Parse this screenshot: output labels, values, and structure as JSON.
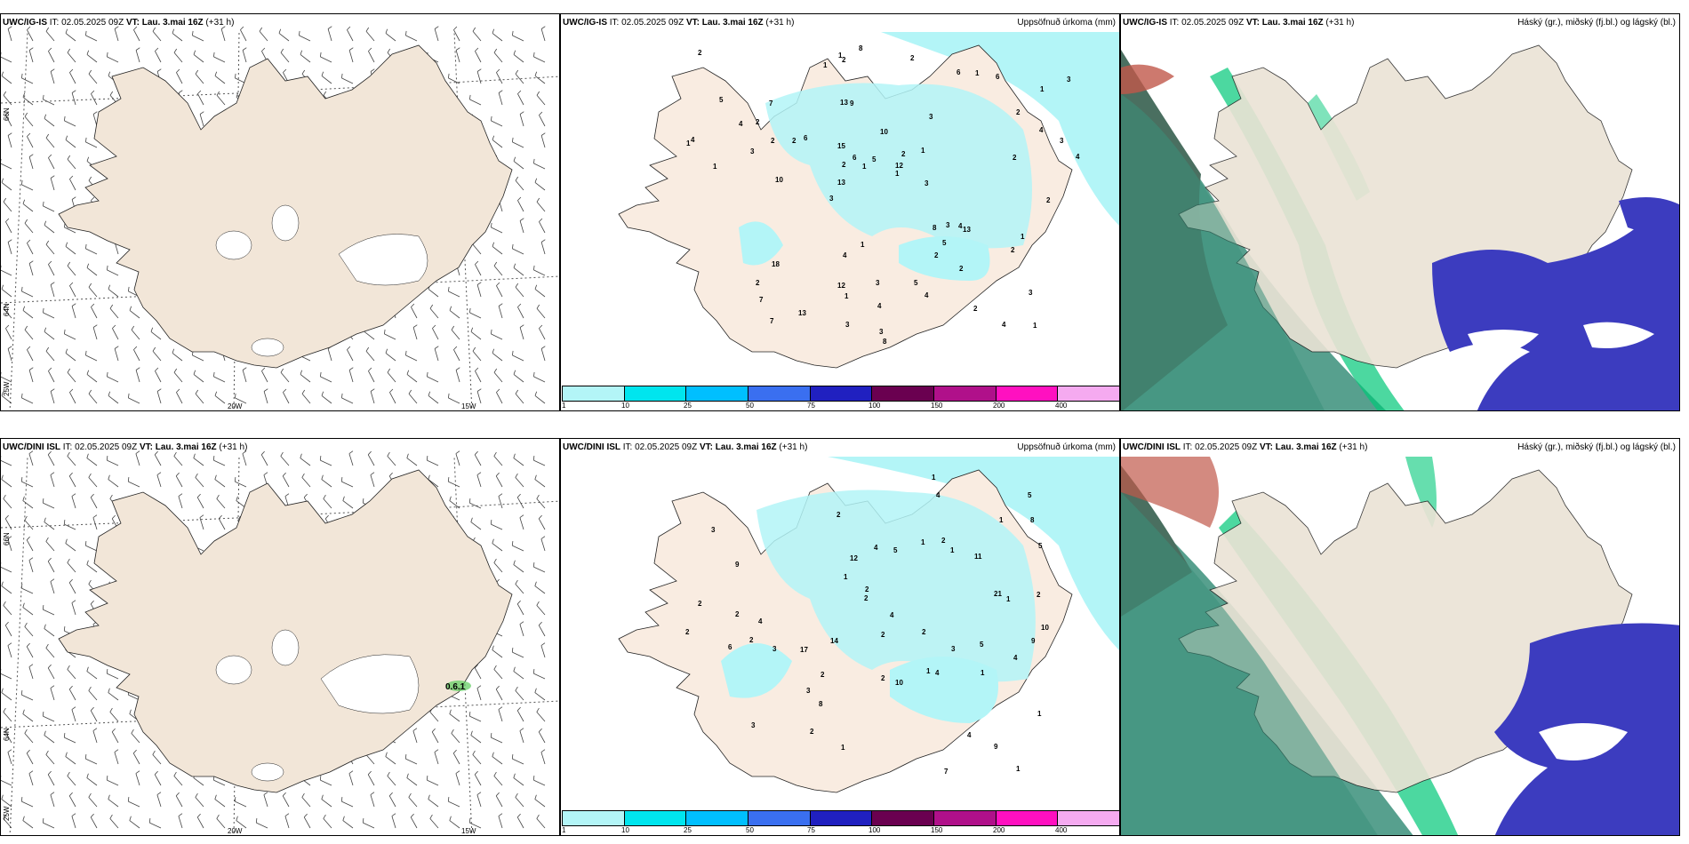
{
  "panels": {
    "top_wind": {
      "model": "UWC/IG-IS",
      "rest": " IT: 02.05.2025 09Z ",
      "vt_label": "VT: Lau. 3.mai 16Z",
      "lead": " (+31 h)"
    },
    "top_precip": {
      "model": "UWC/IG-IS",
      "rest": " IT: 02.05.2025 09Z ",
      "vt_label": "VT: Lau. 3.mai 16Z",
      "lead": " (+31 h)",
      "right_title": "Uppsöfnuð úrkoma (mm)"
    },
    "top_cloud": {
      "model": "UWC/IG-IS",
      "rest": " IT: 02.05.2025 09Z ",
      "vt_label": "VT: Lau. 3.mai 16Z",
      "lead": " (+31 h)",
      "right_title": "Háský (gr.), miðský (fj.bl.) og lágský (bl.)"
    },
    "bot_wind": {
      "model": "UWC/DINI ISL",
      "rest": " IT: 02.05.2025 09Z ",
      "vt_label": "VT: Lau. 3.mai 16Z",
      "lead": " (+31 h)",
      "annotation": "0.6.1"
    },
    "bot_precip": {
      "model": "UWC/DINI ISL",
      "rest": " IT: 02.05.2025 09Z ",
      "vt_label": "VT: Lau. 3.mai 16Z",
      "lead": " (+31 h)",
      "right_title": "Uppsöfnuð úrkoma (mm)"
    },
    "bot_cloud": {
      "model": "UWC/DINI ISL",
      "rest": " IT: 02.05.2025 09Z ",
      "vt_label": "VT: Lau. 3.mai 16Z",
      "lead": " (+31 h)",
      "right_title": "Háský (gr.), miðský (fj.bl.) og lágský (bl.)"
    }
  },
  "axes": {
    "lat_66": "66N",
    "lat_64": "64N",
    "lon_25": "25W",
    "lon_20": "20W",
    "lon_15": "15W"
  },
  "colorbar": {
    "labels": [
      "1",
      "10",
      "25",
      "50",
      "75",
      "100",
      "150",
      "200",
      "400"
    ],
    "colors": [
      "#b3f5f7",
      "#00e5ee",
      "#00bfff",
      "#3a6ff0",
      "#2020c0",
      "#6a0050",
      "#b0108a",
      "#ff10c0",
      "#f5aaf0"
    ]
  },
  "precip_top": [
    "1",
    "1",
    "1",
    "3",
    "3",
    "13",
    "10",
    "6",
    "7",
    "9",
    "2",
    "13",
    "5",
    "2",
    "4",
    "8",
    "4",
    "13",
    "12",
    "2",
    "7",
    "6",
    "18",
    "4",
    "3",
    "4",
    "8",
    "2",
    "3",
    "2",
    "7",
    "3",
    "12",
    "1",
    "1",
    "2",
    "3",
    "5",
    "4",
    "2",
    "3",
    "6",
    "8",
    "10",
    "4",
    "2",
    "1",
    "2",
    "1",
    "6",
    "4",
    "13",
    "3",
    "2",
    "2",
    "4",
    "15",
    "4",
    "5",
    "3",
    "1",
    "3",
    "2",
    "1",
    "2",
    "3",
    "5",
    "1",
    "2",
    "1",
    "2",
    "1",
    "2",
    "1"
  ],
  "precip_bot": [
    "1",
    "2",
    "1",
    "3",
    "1",
    "9",
    "3",
    "17",
    "11",
    "4",
    "1",
    "9",
    "8",
    "2",
    "2",
    "5",
    "4",
    "2",
    "5",
    "5",
    "21",
    "10",
    "2",
    "3",
    "2",
    "2",
    "8",
    "4",
    "6",
    "3",
    "2",
    "12",
    "4",
    "9",
    "4",
    "1",
    "7",
    "2",
    "10",
    "2",
    "1",
    "14",
    "4",
    "5",
    "4",
    "1",
    "2",
    "3",
    "2",
    "1",
    "1",
    "1",
    "2",
    "1",
    "2"
  ],
  "colors": {
    "land": "#f2e6d8",
    "land_grey": "#ebe3d5",
    "ocean_precip": "#b3f5f7",
    "high_cloud": "#3c3cbf",
    "mid_green": "#00c878",
    "low_green": "#3a8f7a"
  }
}
